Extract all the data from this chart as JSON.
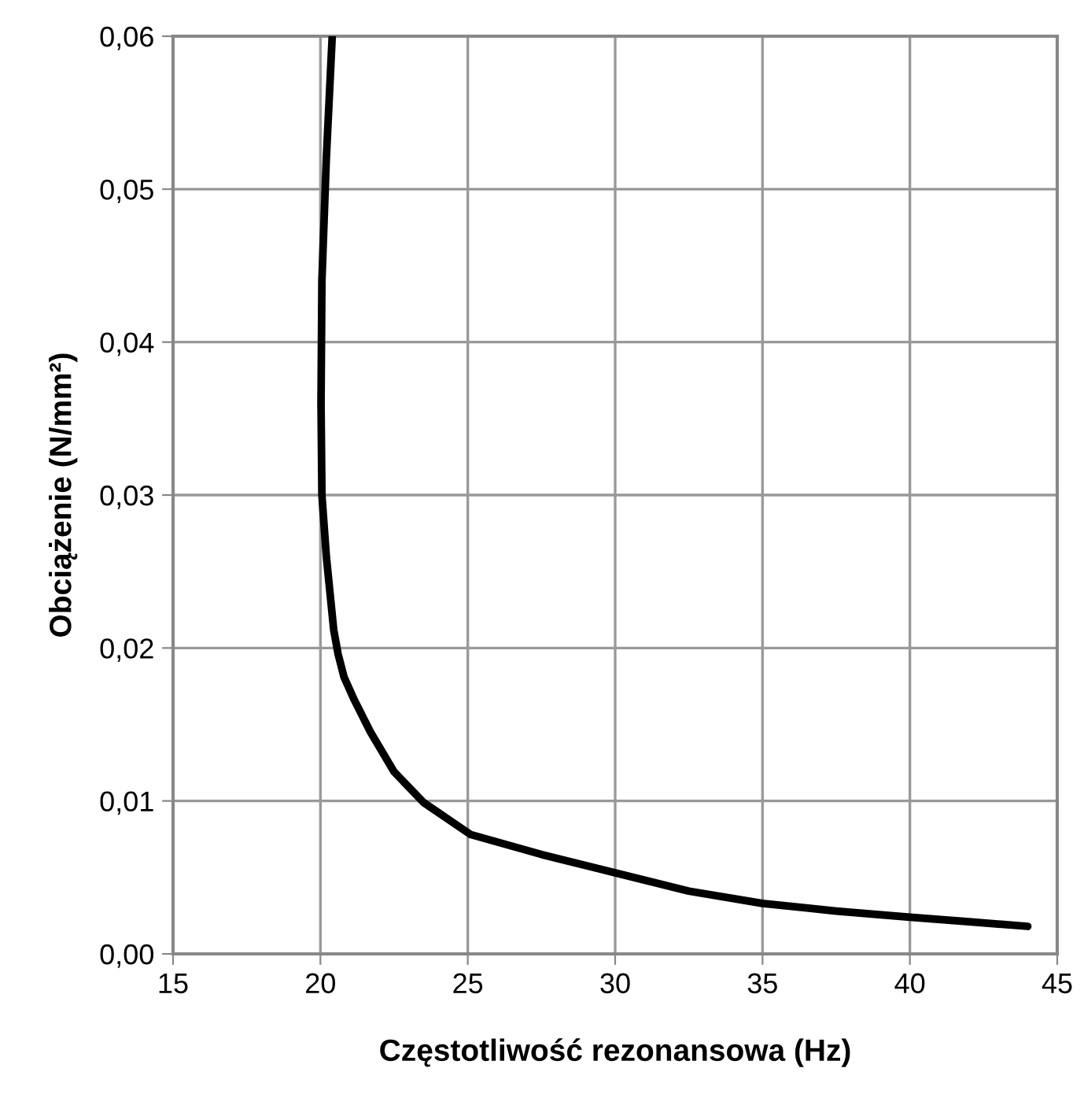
{
  "chart_data": {
    "type": "line",
    "xlabel": "Częstotliwość rezonansowa (Hz)",
    "ylabel": "Obciążenie (N/mm²)",
    "xlim": [
      15,
      45
    ],
    "xticks": [
      15,
      20,
      25,
      30,
      35,
      40,
      45
    ],
    "ylim": [
      0,
      0.06
    ],
    "yticks": [
      {
        "value": 0,
        "label": "0,00"
      },
      {
        "value": 0.01,
        "label": "0,01"
      },
      {
        "value": 0.02,
        "label": "0,02"
      },
      {
        "value": 0.03,
        "label": "0,03"
      },
      {
        "value": 0.04,
        "label": "0,04"
      },
      {
        "value": 0.05,
        "label": "0,05"
      },
      {
        "value": 0.06,
        "label": "0,06"
      }
    ],
    "grid": true,
    "legend": false,
    "marker": "none",
    "line_style": "solid",
    "series": [
      {
        "color": "#000000",
        "x": [
          20.4,
          20.2,
          20.05,
          20.02,
          20.05,
          20.2,
          20.45,
          20.6,
          20.8,
          21.15,
          21.7,
          22.5,
          23.5,
          25.1,
          27.5,
          30,
          32.5,
          35,
          37.5,
          40,
          42,
          44
        ],
        "values": [
          0.06,
          0.052,
          0.044,
          0.036,
          0.03,
          0.026,
          0.0212,
          0.0196,
          0.0181,
          0.0166,
          0.0145,
          0.0119,
          0.0099,
          0.0078,
          0.0065,
          0.0053,
          0.0041,
          0.0033,
          0.0028,
          0.0024,
          0.0021,
          0.0018
        ]
      }
    ]
  }
}
